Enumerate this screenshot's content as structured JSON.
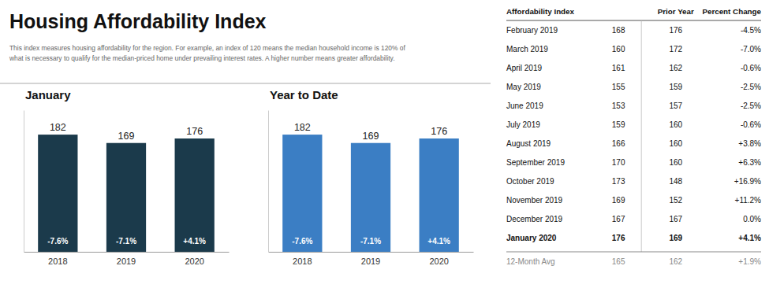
{
  "title": "Housing Affordability Index",
  "subtitle": "This index measures housing affordability for the region. For example, an index of 120 means the median household income is 120% of\nwhat is necessary to qualify for the median-priced home under prevailing interest rates. A higher number means greater affordability.",
  "chart_data": [
    {
      "type": "bar",
      "title": "January",
      "categories": [
        "2018",
        "2019",
        "2020"
      ],
      "values": [
        182,
        169,
        176
      ],
      "colors": [
        "#1b3a4b",
        "#1b3a4b",
        "#1b3a4b"
      ],
      "annotations": [
        "-7.6%",
        "-7.1%",
        "+4.1%"
      ],
      "ylim": [
        0,
        220
      ],
      "data_labels": true,
      "tick_labels": "x",
      "grid": false
    },
    {
      "type": "bar",
      "title": "Year to Date",
      "categories": [
        "2018",
        "2019",
        "2020"
      ],
      "values": [
        182,
        169,
        176
      ],
      "colors": [
        "#3b7ec4",
        "#3b7ec4",
        "#3b7ec4"
      ],
      "annotations": [
        "-7.6%",
        "-7.1%",
        "+4.1%"
      ],
      "ylim": [
        0,
        220
      ],
      "data_labels": true,
      "tick_labels": "x",
      "grid": false
    },
    {
      "type": "table",
      "headers": [
        "Affordability Index",
        "Prior Year",
        "Percent Change"
      ],
      "rows": [
        [
          "February 2019",
          "168",
          "176",
          "-4.5%"
        ],
        [
          "March 2019",
          "160",
          "172",
          "-7.0%"
        ],
        [
          "April 2019",
          "161",
          "162",
          "-0.6%"
        ],
        [
          "May 2019",
          "155",
          "159",
          "-2.5%"
        ],
        [
          "June 2019",
          "153",
          "157",
          "-2.5%"
        ],
        [
          "July 2019",
          "159",
          "160",
          "-0.6%"
        ],
        [
          "August 2019",
          "166",
          "160",
          "+3.8%"
        ],
        [
          "September 2019",
          "170",
          "160",
          "+6.3%"
        ],
        [
          "October 2019",
          "173",
          "148",
          "+16.9%"
        ],
        [
          "November 2019",
          "169",
          "152",
          "+11.2%"
        ],
        [
          "December 2019",
          "167",
          "167",
          "0.0%"
        ],
        [
          "January 2020",
          "176",
          "169",
          "+4.1%"
        ]
      ],
      "footer": [
        "12-Month Avg",
        "165",
        "162",
        "+1.9%"
      ]
    }
  ]
}
